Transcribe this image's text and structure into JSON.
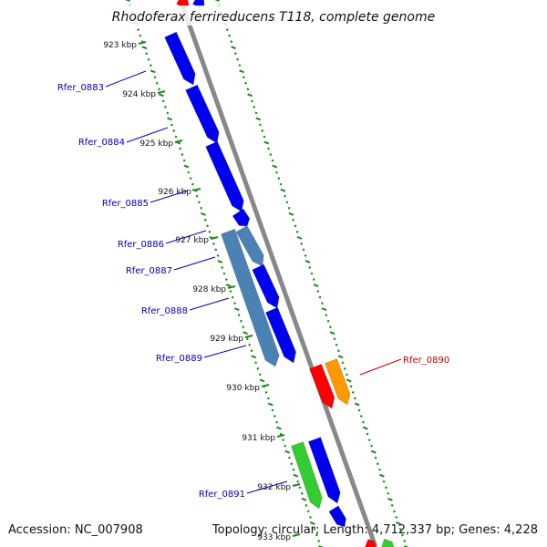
{
  "title": "Rhodoferax ferrireducens T118, complete genome",
  "accession": "Accession: NC_007908",
  "summary": "Topology: circular; Length: 4,712,337 bp; Genes: 4,228",
  "ticks": [
    "923 kbp",
    "924 kbp",
    "925 kbp",
    "926 kbp",
    "927 kbp",
    "928 kbp",
    "929 kbp",
    "930 kbp",
    "931 kbp",
    "932 kbp",
    "933 kbp"
  ],
  "colors": {
    "backbone": "#888888",
    "ruler": "#1a8a1a",
    "gene_blue": "#0000ee",
    "gene_steel": "#4a82b4",
    "gene_red": "#ff0000",
    "gene_orange": "#ff9900",
    "gene_green": "#33cc33",
    "label_blue": "#0000bb",
    "label_red": "#cc0000"
  },
  "genes": [
    {
      "name": "Rfer_0883",
      "color": "gene_blue",
      "label_color": "label_blue"
    },
    {
      "name": "Rfer_0884",
      "color": "gene_blue",
      "label_color": "label_blue"
    },
    {
      "name": "Rfer_0885",
      "color": "gene_blue",
      "label_color": "label_blue"
    },
    {
      "name": "Rfer_0886",
      "color": "gene_blue",
      "label_color": "label_blue"
    },
    {
      "name": "Rfer_0887",
      "color": "gene_steel",
      "label_color": "label_blue"
    },
    {
      "name": "Rfer_0888",
      "color": "gene_blue",
      "label_color": "label_blue"
    },
    {
      "name": "Rfer_0889",
      "color": "gene_blue",
      "label_color": "label_blue"
    },
    {
      "name": "Rfer_0890",
      "color": "gene_red",
      "label_color": "label_red"
    },
    {
      "name": "Rfer_0891",
      "color": "gene_blue",
      "label_color": "label_blue"
    }
  ],
  "extra_genes": [
    "gene_orange",
    "gene_green",
    "gene_blue",
    "gene_red",
    "gene_green",
    "gene_red",
    "gene_blue"
  ]
}
